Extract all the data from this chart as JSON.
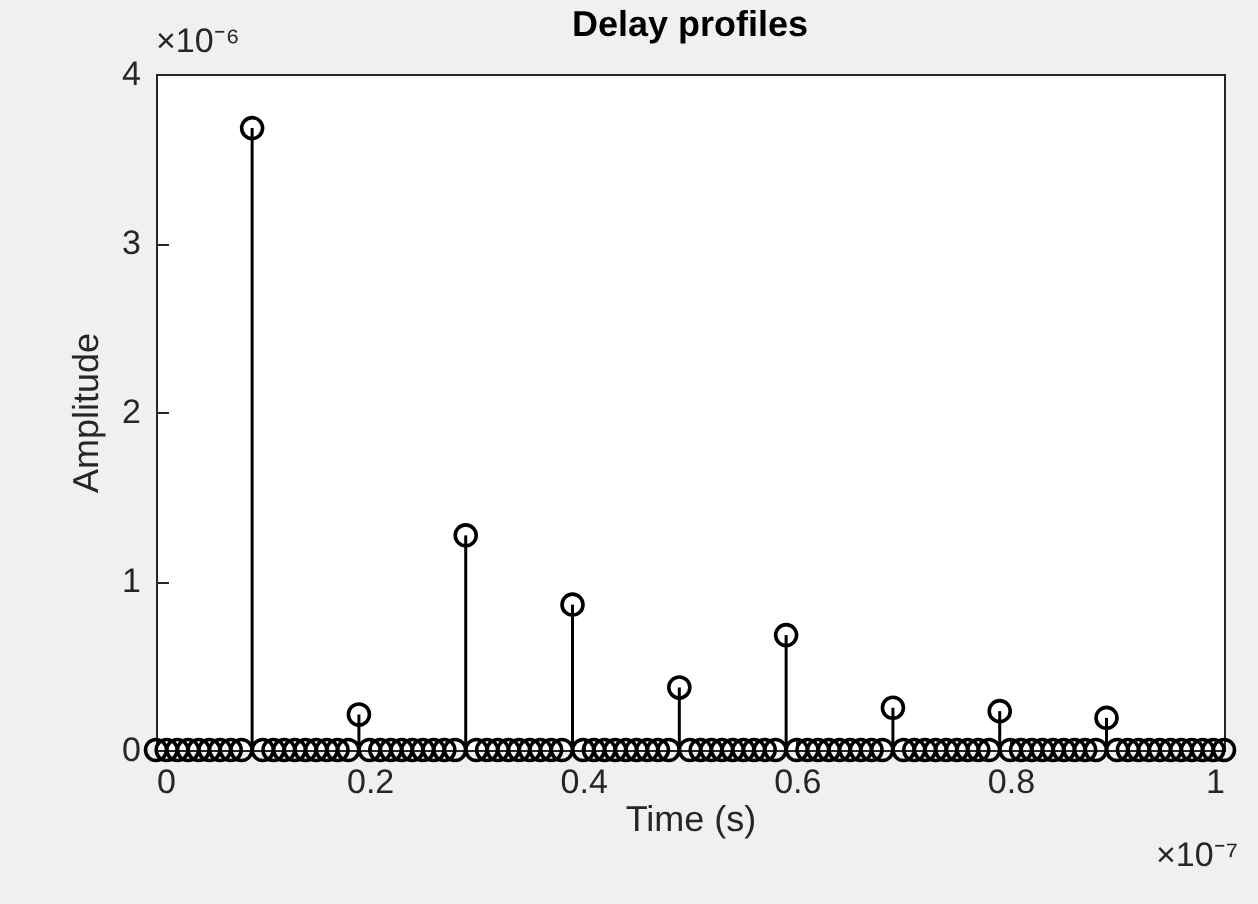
{
  "chart_data": {
    "type": "lollipop",
    "title": "Delay profiles",
    "xlabel": "Time (s)",
    "ylabel": "Amplitude",
    "x": [
      0,
      0.01,
      0.02,
      0.03,
      0.04,
      0.05,
      0.06,
      0.07,
      0.08,
      0.09,
      0.1,
      0.11,
      0.12,
      0.13,
      0.14,
      0.15,
      0.16,
      0.17,
      0.18,
      0.19,
      0.2,
      0.21,
      0.22,
      0.23,
      0.24,
      0.25,
      0.26,
      0.27,
      0.28,
      0.29,
      0.3,
      0.31,
      0.32,
      0.33,
      0.34,
      0.35,
      0.36,
      0.37,
      0.38,
      0.39,
      0.4,
      0.41,
      0.42,
      0.43,
      0.44,
      0.45,
      0.46,
      0.47,
      0.48,
      0.49,
      0.5,
      0.51,
      0.52,
      0.53,
      0.54,
      0.55,
      0.56,
      0.57,
      0.58,
      0.59,
      0.6,
      0.61,
      0.62,
      0.63,
      0.64,
      0.65,
      0.66,
      0.67,
      0.68,
      0.69,
      0.7,
      0.71,
      0.72,
      0.73,
      0.74,
      0.75,
      0.76,
      0.77,
      0.78,
      0.79,
      0.8,
      0.81,
      0.82,
      0.83,
      0.84,
      0.85,
      0.86,
      0.87,
      0.88,
      0.89,
      0.9,
      0.91,
      0.92,
      0.93,
      0.94,
      0.95,
      0.96,
      0.97,
      0.98,
      0.99,
      1
    ],
    "series": [
      {
        "color": "#000000",
        "values": [
          0,
          0,
          0,
          0,
          0,
          0,
          0,
          0,
          0,
          3.68,
          0,
          0,
          0,
          0,
          0,
          0,
          0,
          0,
          0,
          0.21,
          0,
          0,
          0,
          0,
          0,
          0,
          0,
          0,
          0,
          1.27,
          0,
          0,
          0,
          0,
          0,
          0,
          0,
          0,
          0,
          0.86,
          0,
          0,
          0,
          0,
          0,
          0,
          0,
          0,
          0,
          0.37,
          0,
          0,
          0,
          0,
          0,
          0,
          0,
          0,
          0,
          0.68,
          0,
          0,
          0,
          0,
          0,
          0,
          0,
          0,
          0,
          0.25,
          0,
          0,
          0,
          0,
          0,
          0,
          0,
          0,
          0,
          0.23,
          0,
          0,
          0,
          0,
          0,
          0,
          0,
          0,
          0,
          0.19,
          0,
          0,
          0,
          0,
          0,
          0,
          0,
          0,
          0,
          0,
          0
        ]
      }
    ],
    "xlim": [
      0,
      1
    ],
    "xticks": [
      0,
      0.2,
      0.4,
      0.6,
      0.8,
      1
    ],
    "ylim": [
      0,
      4
    ],
    "yticks": [
      0,
      1,
      2,
      3,
      4
    ],
    "marker": "circle",
    "grid": false,
    "annotations": [
      "×10⁻⁶",
      "×10⁻⁷"
    ]
  }
}
